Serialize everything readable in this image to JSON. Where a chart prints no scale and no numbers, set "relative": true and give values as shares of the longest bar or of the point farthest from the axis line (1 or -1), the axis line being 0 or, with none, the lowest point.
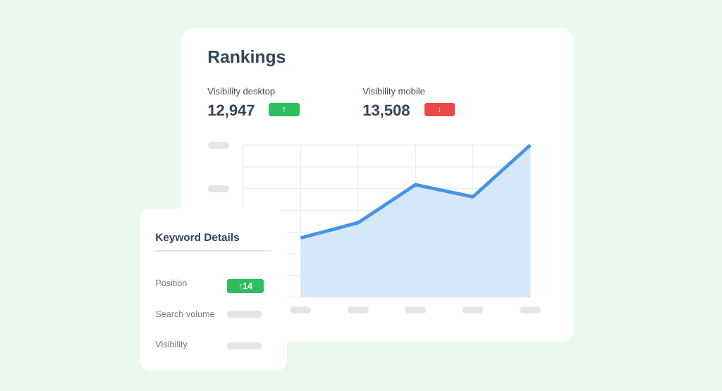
{
  "chart_data": {
    "type": "area",
    "title": "Rankings",
    "annotations": [
      "Visibility desktop",
      "12,947",
      "↑",
      "Visibility mobile",
      "13,508",
      "↓",
      "Keyword Details",
      "Position",
      "↑14",
      "Search volume",
      "Visibility"
    ],
    "categories": [
      null,
      null,
      null,
      null,
      null,
      null
    ],
    "values": [
      null,
      0.39,
      0.49,
      0.74,
      0.66,
      1
    ],
    "color": "#4394e5",
    "relative": true,
    "grid": true
  }
}
